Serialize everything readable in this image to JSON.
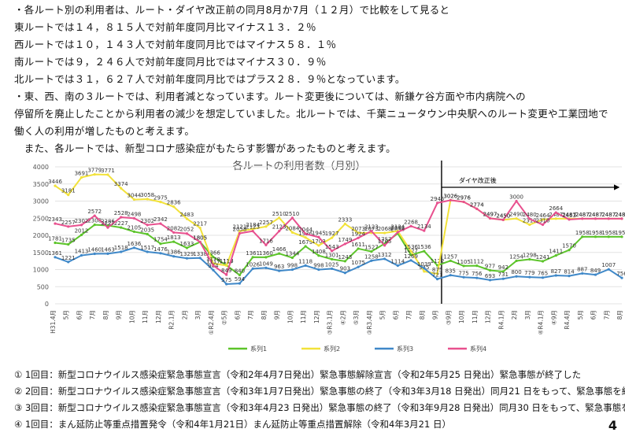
{
  "intro_lines": [
    "・各ルート別の利用者は、ルート・ダイヤ改正前の同月8月か7月（１２月）で比較をして見ると",
    "東ルートでは１４，８１５人で対前年度同月比マイナス１３．２％",
    "西ルートでは１０，１４３人で対前年度同月比ではマイナス５８．１％",
    "南ルートでは９，２４６人で対前年度同月比ではマイナス３０．９％",
    "北ルートでは３１，６２７人で対前年度同月比ではプラス２８．９％となっています。",
    "・東、西、南の３ルートでは、利用者減となっています。ルート変更後については、新鎌ケ谷方面や市内病院への",
    "停留所を廃止したことから利用者の減少を想定していました。北ルートでは、千葉ニュータウン中央駅へのルート変更や工業団地で",
    "働く人の利用が増したものと考えます。",
    "　また、各ルートでは、新型コロナ感染症がもたらす影響があったものと考えます。"
  ],
  "chart_data": {
    "type": "line",
    "title": "各ルートの利用者数（月別）",
    "annotation": "ダイヤ改正後",
    "ylim": [
      0,
      4000
    ],
    "yticks": [
      0,
      500,
      1000,
      1500,
      2000,
      2500,
      3000,
      3500,
      4000
    ],
    "categories": [
      "H31.4月",
      "5月",
      "6月",
      "7月",
      "8月",
      "9月",
      "10月",
      "11月",
      "12月",
      "R2.1月",
      "2月",
      "3月",
      "①R2.4月",
      "②5月",
      "6月",
      "7月",
      "8月",
      "9月",
      "10月",
      "11月",
      "12月",
      "③R3.1月",
      "④2月",
      "⑤3月",
      "③R3.4月",
      "5月",
      "6月",
      "7月",
      "8月",
      "9月",
      "③9月",
      "10月",
      "11月",
      "12月",
      "R4.1月",
      "2月",
      "3月",
      "④R4.1月",
      "④9月",
      "R4.4月",
      "5月",
      "6月",
      "7月",
      "8月"
    ],
    "series": [
      {
        "name": "系列1",
        "color": "#5cc42a",
        "values": [
          1781,
          1735,
          2012,
          2308,
          2286,
          2227,
          2105,
          2035,
          1754,
          1813,
          1633,
          1805,
          1366,
          1126,
          840,
          1361,
          1360,
          1466,
          1344,
          1679,
          1408,
          1301,
          1243,
          1611,
          1527,
          1757,
          2056,
          1427,
          1536,
          1122,
          1257,
          1105,
          1112,
          977,
          942,
          1254,
          1298,
          1241,
          1411,
          1570,
          1958,
          1958,
          1958,
          1958
        ]
      },
      {
        "name": "系列2",
        "color": "#f2e23a",
        "values": [
          3446,
          3181,
          3691,
          3779,
          3771,
          3374,
          3044,
          3058,
          2975,
          2836,
          2483,
          2217,
          1178,
          1117,
          2121,
          2184,
          2257,
          2510,
          2084,
          1936,
          1703,
          1927,
          2333,
          2073,
          2073,
          2068,
          2124,
          1536,
          945,
          875,
          3026,
          2976,
          2774,
          2497,
          2450,
          2490,
          2310,
          2464,
          2487,
          2487,
          2487,
          2487,
          2487,
          2487
        ]
      },
      {
        "name": "系列3",
        "color": "#3f88c8",
        "values": [
          1361,
          1221,
          1413,
          1460,
          1463,
          1518,
          1636,
          1517,
          1476,
          1386,
          1329,
          1338,
          984,
          575,
          594,
          1026,
          1049,
          963,
          998,
          1118,
          998,
          1025,
          903,
          1075,
          1258,
          1312,
          1114,
          1269,
          1039,
          721,
          835,
          775,
          756,
          693,
          731,
          800,
          779,
          765,
          827,
          814,
          887,
          849,
          1007,
          756
        ]
      },
      {
        "name": "系列4",
        "color": "#e8508e",
        "values": [
          2343,
          2257,
          2302,
          2572,
          2227,
          2528,
          2498,
          2302,
          2342,
          2082,
          2052,
          1805,
          1117,
          849,
          2058,
          2123,
          1716,
          2123,
          2510,
          2044,
          1945,
          1543,
          1749,
          1924,
          2123,
          1705,
          2093,
          2268,
          2134,
          2945,
          3026,
          2976,
          2774,
          2497,
          2450,
          3000,
          2480,
          2310,
          2664,
          2463,
          2487,
          2487,
          2487,
          2487
        ]
      }
    ],
    "legend_position": "bottom"
  },
  "notes": [
    {
      "num": "①",
      "text": "1回目：新型コロナウイルス感染症緊急事態宣言（令和2年4月7日発出）緊急事態解除宣言（令和2年5月25 日発出）緊急事態が終了した"
    },
    {
      "num": "②",
      "text": "2回目：新型コロナウイルス感染症緊急事態宣言（令和3年1月7日発出）緊急事態の終了（令和3年3月18 日発出）同月21 日をもって、緊急事態を終了し"
    },
    {
      "num": "③",
      "text": "3回目：新型コロナウイルス感染症緊急事態宣言（令和3年4月23 日発出）緊急事態の終了（令和3年9月28 日発出）同月30 日をもって、緊急事態を終了"
    },
    {
      "num": "④",
      "text": "1回目：まん延防止等重点措置発令（令和4年1月21日）まん延防止等重点措置解除（令和4年3月21 日）"
    }
  ],
  "page_number": "4"
}
